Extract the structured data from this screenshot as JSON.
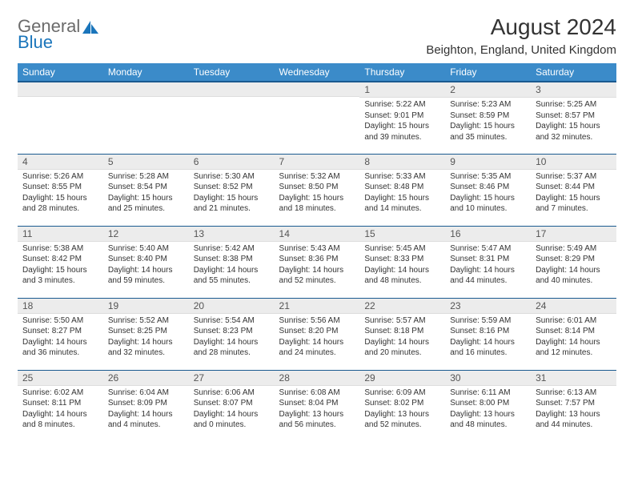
{
  "logo": {
    "word1": "General",
    "word2": "Blue"
  },
  "title": "August 2024",
  "location": "Beighton, England, United Kingdom",
  "colors": {
    "header_bg": "#3b8bc9",
    "header_border": "#1a5a90",
    "daynum_bg": "#ececec",
    "text": "#333333",
    "logo_gray": "#6b6b6b",
    "logo_blue": "#1a75bb",
    "page_bg": "#ffffff"
  },
  "typography": {
    "title_fontsize": 28,
    "location_fontsize": 15,
    "th_fontsize": 12,
    "daynum_fontsize": 12,
    "cell_fontsize": 10
  },
  "weekdays": [
    "Sunday",
    "Monday",
    "Tuesday",
    "Wednesday",
    "Thursday",
    "Friday",
    "Saturday"
  ],
  "weeks": [
    [
      {
        "num": "",
        "lines": [
          "",
          "",
          "",
          ""
        ]
      },
      {
        "num": "",
        "lines": [
          "",
          "",
          "",
          ""
        ]
      },
      {
        "num": "",
        "lines": [
          "",
          "",
          "",
          ""
        ]
      },
      {
        "num": "",
        "lines": [
          "",
          "",
          "",
          ""
        ]
      },
      {
        "num": "1",
        "lines": [
          "Sunrise: 5:22 AM",
          "Sunset: 9:01 PM",
          "Daylight: 15 hours",
          "and 39 minutes."
        ]
      },
      {
        "num": "2",
        "lines": [
          "Sunrise: 5:23 AM",
          "Sunset: 8:59 PM",
          "Daylight: 15 hours",
          "and 35 minutes."
        ]
      },
      {
        "num": "3",
        "lines": [
          "Sunrise: 5:25 AM",
          "Sunset: 8:57 PM",
          "Daylight: 15 hours",
          "and 32 minutes."
        ]
      }
    ],
    [
      {
        "num": "4",
        "lines": [
          "Sunrise: 5:26 AM",
          "Sunset: 8:55 PM",
          "Daylight: 15 hours",
          "and 28 minutes."
        ]
      },
      {
        "num": "5",
        "lines": [
          "Sunrise: 5:28 AM",
          "Sunset: 8:54 PM",
          "Daylight: 15 hours",
          "and 25 minutes."
        ]
      },
      {
        "num": "6",
        "lines": [
          "Sunrise: 5:30 AM",
          "Sunset: 8:52 PM",
          "Daylight: 15 hours",
          "and 21 minutes."
        ]
      },
      {
        "num": "7",
        "lines": [
          "Sunrise: 5:32 AM",
          "Sunset: 8:50 PM",
          "Daylight: 15 hours",
          "and 18 minutes."
        ]
      },
      {
        "num": "8",
        "lines": [
          "Sunrise: 5:33 AM",
          "Sunset: 8:48 PM",
          "Daylight: 15 hours",
          "and 14 minutes."
        ]
      },
      {
        "num": "9",
        "lines": [
          "Sunrise: 5:35 AM",
          "Sunset: 8:46 PM",
          "Daylight: 15 hours",
          "and 10 minutes."
        ]
      },
      {
        "num": "10",
        "lines": [
          "Sunrise: 5:37 AM",
          "Sunset: 8:44 PM",
          "Daylight: 15 hours",
          "and 7 minutes."
        ]
      }
    ],
    [
      {
        "num": "11",
        "lines": [
          "Sunrise: 5:38 AM",
          "Sunset: 8:42 PM",
          "Daylight: 15 hours",
          "and 3 minutes."
        ]
      },
      {
        "num": "12",
        "lines": [
          "Sunrise: 5:40 AM",
          "Sunset: 8:40 PM",
          "Daylight: 14 hours",
          "and 59 minutes."
        ]
      },
      {
        "num": "13",
        "lines": [
          "Sunrise: 5:42 AM",
          "Sunset: 8:38 PM",
          "Daylight: 14 hours",
          "and 55 minutes."
        ]
      },
      {
        "num": "14",
        "lines": [
          "Sunrise: 5:43 AM",
          "Sunset: 8:36 PM",
          "Daylight: 14 hours",
          "and 52 minutes."
        ]
      },
      {
        "num": "15",
        "lines": [
          "Sunrise: 5:45 AM",
          "Sunset: 8:33 PM",
          "Daylight: 14 hours",
          "and 48 minutes."
        ]
      },
      {
        "num": "16",
        "lines": [
          "Sunrise: 5:47 AM",
          "Sunset: 8:31 PM",
          "Daylight: 14 hours",
          "and 44 minutes."
        ]
      },
      {
        "num": "17",
        "lines": [
          "Sunrise: 5:49 AM",
          "Sunset: 8:29 PM",
          "Daylight: 14 hours",
          "and 40 minutes."
        ]
      }
    ],
    [
      {
        "num": "18",
        "lines": [
          "Sunrise: 5:50 AM",
          "Sunset: 8:27 PM",
          "Daylight: 14 hours",
          "and 36 minutes."
        ]
      },
      {
        "num": "19",
        "lines": [
          "Sunrise: 5:52 AM",
          "Sunset: 8:25 PM",
          "Daylight: 14 hours",
          "and 32 minutes."
        ]
      },
      {
        "num": "20",
        "lines": [
          "Sunrise: 5:54 AM",
          "Sunset: 8:23 PM",
          "Daylight: 14 hours",
          "and 28 minutes."
        ]
      },
      {
        "num": "21",
        "lines": [
          "Sunrise: 5:56 AM",
          "Sunset: 8:20 PM",
          "Daylight: 14 hours",
          "and 24 minutes."
        ]
      },
      {
        "num": "22",
        "lines": [
          "Sunrise: 5:57 AM",
          "Sunset: 8:18 PM",
          "Daylight: 14 hours",
          "and 20 minutes."
        ]
      },
      {
        "num": "23",
        "lines": [
          "Sunrise: 5:59 AM",
          "Sunset: 8:16 PM",
          "Daylight: 14 hours",
          "and 16 minutes."
        ]
      },
      {
        "num": "24",
        "lines": [
          "Sunrise: 6:01 AM",
          "Sunset: 8:14 PM",
          "Daylight: 14 hours",
          "and 12 minutes."
        ]
      }
    ],
    [
      {
        "num": "25",
        "lines": [
          "Sunrise: 6:02 AM",
          "Sunset: 8:11 PM",
          "Daylight: 14 hours",
          "and 8 minutes."
        ]
      },
      {
        "num": "26",
        "lines": [
          "Sunrise: 6:04 AM",
          "Sunset: 8:09 PM",
          "Daylight: 14 hours",
          "and 4 minutes."
        ]
      },
      {
        "num": "27",
        "lines": [
          "Sunrise: 6:06 AM",
          "Sunset: 8:07 PM",
          "Daylight: 14 hours",
          "and 0 minutes."
        ]
      },
      {
        "num": "28",
        "lines": [
          "Sunrise: 6:08 AM",
          "Sunset: 8:04 PM",
          "Daylight: 13 hours",
          "and 56 minutes."
        ]
      },
      {
        "num": "29",
        "lines": [
          "Sunrise: 6:09 AM",
          "Sunset: 8:02 PM",
          "Daylight: 13 hours",
          "and 52 minutes."
        ]
      },
      {
        "num": "30",
        "lines": [
          "Sunrise: 6:11 AM",
          "Sunset: 8:00 PM",
          "Daylight: 13 hours",
          "and 48 minutes."
        ]
      },
      {
        "num": "31",
        "lines": [
          "Sunrise: 6:13 AM",
          "Sunset: 7:57 PM",
          "Daylight: 13 hours",
          "and 44 minutes."
        ]
      }
    ]
  ]
}
